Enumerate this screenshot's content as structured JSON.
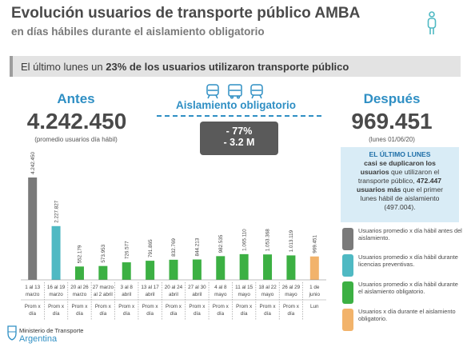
{
  "header": {
    "title": "Evolución usuarios de transporte público AMBA",
    "subtitle": "en días hábiles durante el aislamiento obligatorio"
  },
  "banner": {
    "prefix": "El último lunes un ",
    "highlight": "23% de los usuarios utilizaron transporte público"
  },
  "before": {
    "label": "Antes",
    "value": "4.242.450",
    "note": "(promedio usuarios día hábil)"
  },
  "after": {
    "label": "Después",
    "value": "969.451",
    "note": "(lunes 01/06/20)"
  },
  "isolation": {
    "label": "Aislamiento obligatorio",
    "change_pct": "- 77%",
    "change_abs": "- 3.2 M"
  },
  "info_box": {
    "line1": "EL ÚLTIMO LUNES",
    "line2": "casi se duplicaron los",
    "line3_bold": "usuarios",
    "line3_rest": " que utilizaron el",
    "line4_a": "transporte público, ",
    "line4_bold": "472.447",
    "line5_bold": "usuarios más",
    "line5_rest": " que el primer",
    "line6": "lunes hábil de aislamiento",
    "line7": "(497.004)."
  },
  "legend": [
    {
      "text": "Usuarios promedio x día hábil antes del aislamiento.",
      "color": "#7a7a7a"
    },
    {
      "text": "Usuarios promedio x día hábil durante licencias preventivas.",
      "color": "#4fb9c3"
    },
    {
      "text": "Usuarios promedio x día hábil durante el aislamiento obligatorio.",
      "color": "#3cb043"
    },
    {
      "text": "Usuarios x día durante el aislamiento obligatorio.",
      "color": "#f2b36b"
    }
  ],
  "footer": {
    "ministry": "Ministerio de Transporte",
    "country": "Argentina"
  },
  "chart_data": {
    "type": "bar",
    "categories": [
      "1 al 13 marzo",
      "16 al 19 marzo",
      "20 al 26 marzo",
      "27 marzo al 2 abril",
      "3 al 8 abril",
      "13 al 17 abril",
      "20 al 24 abril",
      "27 al 30 abril",
      "4 al 8 mayo",
      "11 al 15 mayo",
      "18 al 22 mayo",
      "26 al 29 mayo",
      "1 de junio"
    ],
    "category_lines": [
      [
        "1 al 13",
        "marzo"
      ],
      [
        "16 al 19",
        "marzo"
      ],
      [
        "20 al 26",
        "marzo"
      ],
      [
        "27 marzo",
        "al 2 abril"
      ],
      [
        "3 al 8",
        "abril"
      ],
      [
        "13 al 17",
        "abril"
      ],
      [
        "20 al 24",
        "abril"
      ],
      [
        "27 al 30",
        "abril"
      ],
      [
        "4 al 8",
        "mayo"
      ],
      [
        "11 al 15",
        "mayo"
      ],
      [
        "18 al 22",
        "mayo"
      ],
      [
        "26 al 29",
        "mayo"
      ],
      [
        "1 de",
        "junio"
      ]
    ],
    "values": [
      4242450,
      2227827,
      552179,
      573953,
      726577,
      791865,
      832769,
      844213,
      982535,
      1065110,
      1053368,
      1013119,
      969451
    ],
    "value_labels": [
      "4.242.450",
      "2.227.827",
      "552.179",
      "573.953",
      "726.577",
      "791.865",
      "832.769",
      "844.213",
      "982.535",
      "1.065.110",
      "1.053.368",
      "1.013.119",
      "969.451"
    ],
    "bar_colors": [
      "#7a7a7a",
      "#4fb9c3",
      "#3cb043",
      "#3cb043",
      "#3cb043",
      "#3cb043",
      "#3cb043",
      "#3cb043",
      "#3cb043",
      "#3cb043",
      "#3cb043",
      "#3cb043",
      "#f2b36b"
    ],
    "sub_labels": [
      [
        "Prom x",
        "día"
      ],
      [
        "Prom x",
        "día"
      ],
      [
        "Prom x",
        "día"
      ],
      [
        "Prom x",
        "día"
      ],
      [
        "Prom x",
        "día"
      ],
      [
        "Prom x",
        "día"
      ],
      [
        "Prom x",
        "día"
      ],
      [
        "Prom x",
        "día"
      ],
      [
        "Prom x",
        "día"
      ],
      [
        "Prom x",
        "día"
      ],
      [
        "Prom x",
        "día"
      ],
      [
        "Prom x",
        "día"
      ],
      [
        "Lun"
      ]
    ],
    "title": "",
    "xlabel": "",
    "ylabel": "",
    "ylim": [
      0,
      4242450
    ]
  }
}
